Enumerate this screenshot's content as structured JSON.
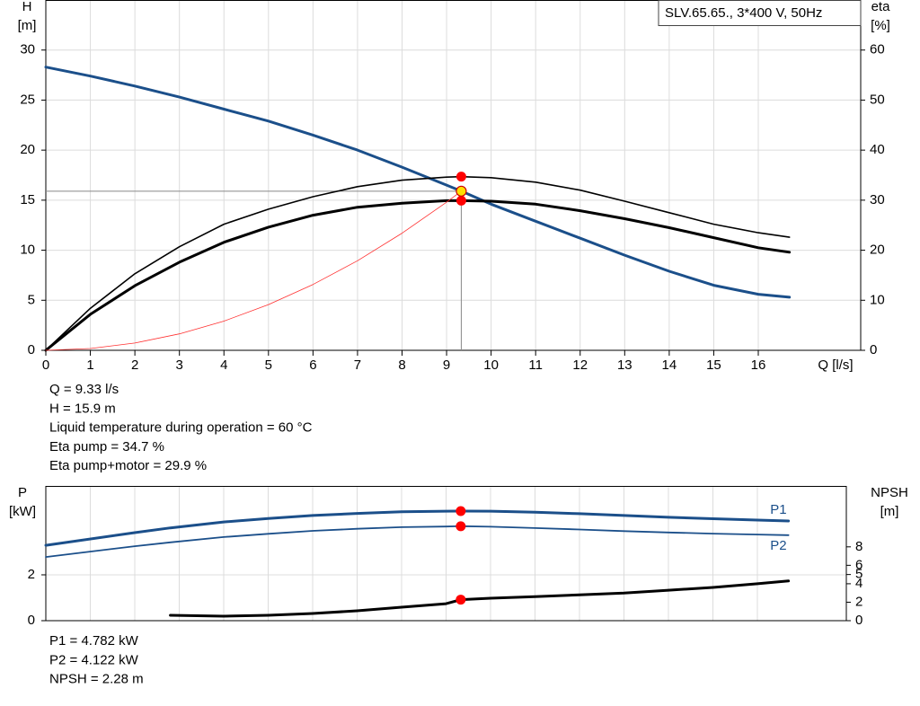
{
  "chart_data": [
    {
      "type": "line",
      "title": "SLV.65.65., 3*400 V, 50Hz",
      "ylabel": [
        "H",
        "[m]"
      ],
      "y2label": [
        "eta",
        "[%]"
      ],
      "xlabel": "Q [l/s]",
      "x": [
        0,
        1,
        2,
        3,
        4,
        5,
        6,
        7,
        8,
        9,
        9.33,
        10,
        11,
        12,
        13,
        14,
        15,
        16,
        16.7
      ],
      "xlim": [
        0,
        18.3
      ],
      "xticks": [
        0,
        1,
        2,
        3,
        4,
        5,
        6,
        7,
        8,
        9,
        10,
        11,
        12,
        13,
        14,
        15,
        16
      ],
      "ylim": [
        0,
        35
      ],
      "yticks": [
        0,
        5,
        10,
        15,
        20,
        25,
        30
      ],
      "y2lim": [
        0,
        70
      ],
      "y2ticks": [
        0,
        10,
        20,
        30,
        40,
        50,
        60
      ],
      "grid": true,
      "series": [
        {
          "color": "#1b4f8a",
          "width": 3,
          "values": [
            28.3,
            27.4,
            26.4,
            25.3,
            24.1,
            22.9,
            21.5,
            20.0,
            18.3,
            16.5,
            15.9,
            14.6,
            12.9,
            11.2,
            9.5,
            7.9,
            6.5,
            5.6,
            5.3
          ]
        },
        {
          "color": "#000000",
          "width": 1.6,
          "axis": "y2",
          "values": [
            0,
            8.4,
            15.3,
            20.7,
            25.2,
            28.2,
            30.7,
            32.7,
            34.0,
            34.6,
            34.7,
            34.5,
            33.6,
            32.0,
            29.8,
            27.5,
            25.2,
            23.5,
            22.6
          ]
        },
        {
          "color": "#000000",
          "width": 3,
          "axis": "y2",
          "values": [
            0,
            7.2,
            12.9,
            17.6,
            21.6,
            24.6,
            27.0,
            28.6,
            29.4,
            29.9,
            29.9,
            29.8,
            29.2,
            27.9,
            26.3,
            24.5,
            22.5,
            20.5,
            19.6
          ]
        },
        {
          "color": "#ff3030",
          "width": 0.8,
          "values": [
            0,
            0.18,
            0.73,
            1.64,
            2.92,
            4.57,
            6.58,
            8.95,
            11.7,
            14.8,
            15.9,
            null,
            null,
            null,
            null,
            null,
            null,
            null,
            null
          ]
        }
      ],
      "duty": {
        "x": 9.33,
        "y": 15.9
      },
      "points": [
        {
          "x": 9.33,
          "y": 34.7,
          "axis": "y2",
          "color": "#ff0000"
        },
        {
          "x": 9.33,
          "y": 29.9,
          "axis": "y2",
          "color": "#ff0000"
        },
        {
          "x": 9.33,
          "y": 15.9,
          "color": "#ffe000"
        }
      ],
      "info": [
        "Q = 9.33 l/s",
        "H = 15.9 m",
        "Liquid temperature during operation = 60 °C",
        "Eta pump = 34.7 %",
        "Eta pump+motor = 29.9 %"
      ]
    },
    {
      "type": "line",
      "ylabel": [
        "P",
        "[kW]"
      ],
      "y2label": [
        "NPSH",
        "[m]"
      ],
      "x": [
        0,
        2,
        2.8,
        4,
        5,
        6,
        7,
        8,
        9,
        9.33,
        10,
        11,
        12,
        13,
        14,
        15,
        16,
        16.7
      ],
      "xlim": [
        0,
        18
      ],
      "ylim": [
        0,
        5.88
      ],
      "yticks": [
        0,
        2
      ],
      "y2lim": [
        0,
        14.6
      ],
      "y2ticks": [
        0,
        2,
        4,
        5,
        6,
        8
      ],
      "grid": true,
      "series": [
        {
          "name": "P1",
          "color": "#1b4f8a",
          "width": 3,
          "values": [
            3.29,
            3.84,
            4.05,
            4.31,
            4.46,
            4.59,
            4.68,
            4.75,
            4.78,
            4.782,
            4.78,
            4.73,
            4.67,
            4.59,
            4.51,
            4.45,
            4.39,
            4.35
          ]
        },
        {
          "name": "P2",
          "color": "#1b4f8a",
          "width": 1.8,
          "values": [
            2.78,
            3.25,
            3.42,
            3.65,
            3.79,
            3.92,
            4.01,
            4.08,
            4.11,
            4.122,
            4.1,
            4.04,
            3.98,
            3.91,
            3.85,
            3.8,
            3.76,
            3.73
          ]
        },
        {
          "color": "#000000",
          "width": 3,
          "axis": "y2",
          "values": [
            null,
            null,
            0.58,
            0.49,
            0.58,
            0.78,
            1.07,
            1.46,
            1.84,
            2.28,
            2.43,
            2.6,
            2.8,
            3.0,
            3.3,
            3.6,
            4.0,
            4.3
          ]
        }
      ],
      "points": [
        {
          "x": 9.33,
          "y": 4.782,
          "color": "#ff0000"
        },
        {
          "x": 9.33,
          "y": 4.122,
          "color": "#ff0000"
        },
        {
          "x": 9.33,
          "y": 2.28,
          "axis": "y2",
          "color": "#ff0000"
        }
      ],
      "info": [
        "P1 = 4.782 kW",
        "P2 = 4.122 kW",
        "NPSH = 2.28 m"
      ]
    }
  ]
}
